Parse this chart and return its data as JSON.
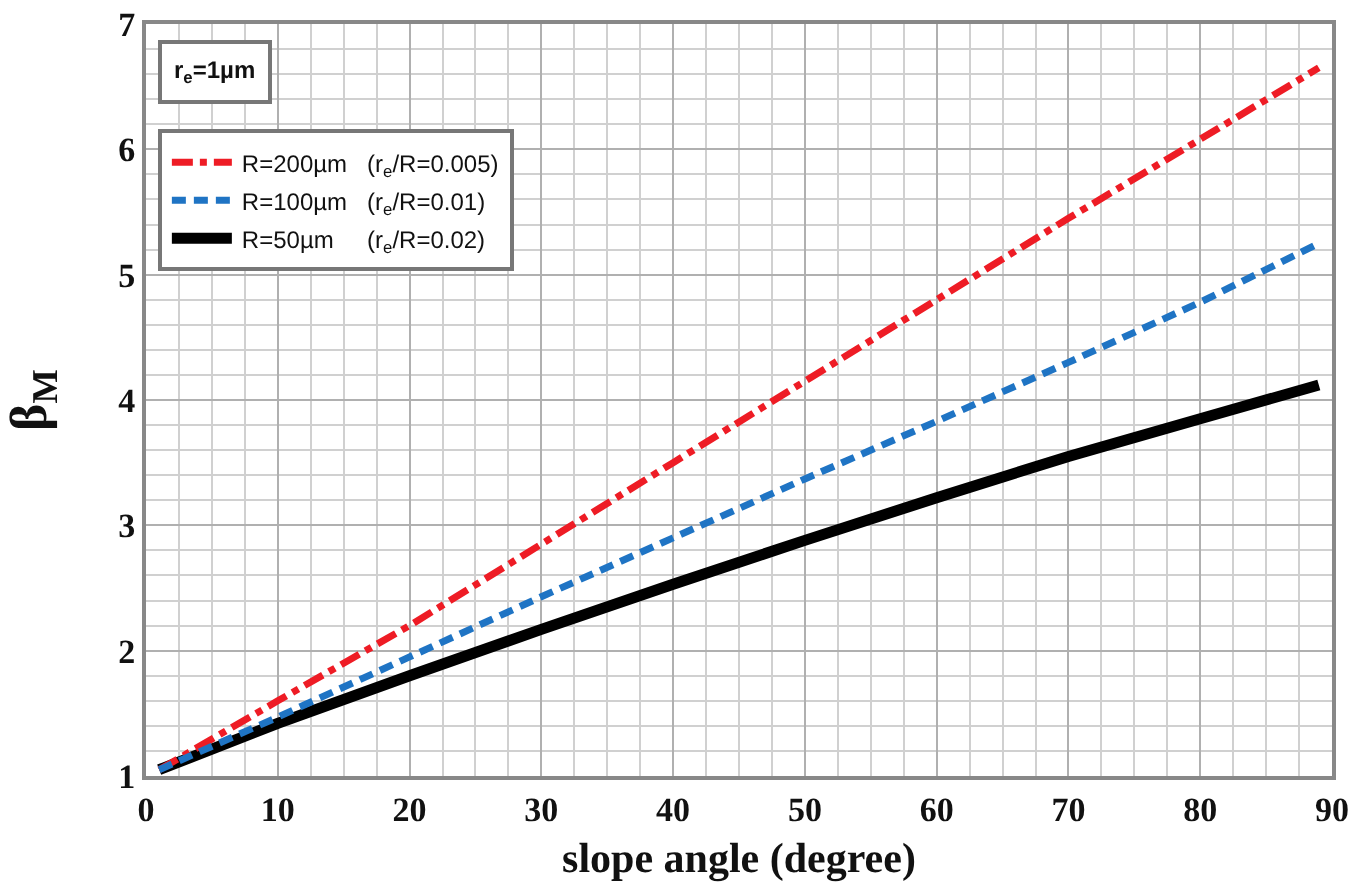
{
  "chart_data": {
    "type": "line",
    "xlabel": "slope angle (degree)",
    "ylabel": "β$_{M}$",
    "x": [
      1,
      10,
      20,
      30,
      40,
      50,
      60,
      70,
      80,
      89
    ],
    "xlim": [
      0,
      90
    ],
    "xticks": [
      0,
      10,
      20,
      30,
      40,
      50,
      60,
      70,
      80,
      90
    ],
    "ylim": [
      1,
      7
    ],
    "yticks": [
      1,
      2,
      3,
      4,
      5,
      6,
      7
    ],
    "grid": true,
    "legend": "top left",
    "annotations": [
      "r$_{e}$=1µm"
    ],
    "series": [
      {
        "name": "R=200µm   (r$_{e}$/R=0.005)",
        "color": "#ee1c25",
        "line_style": "dashdot",
        "values": [
          1.05,
          1.6,
          2.2,
          2.85,
          3.5,
          4.15,
          4.8,
          5.45,
          6.08,
          6.65
        ]
      },
      {
        "name": "R=100µm   (r$_{e}$/R=0.01)",
        "color": "#1f74c4",
        "line_style": "dashed",
        "values": [
          1.05,
          1.47,
          1.95,
          2.43,
          2.9,
          3.37,
          3.83,
          4.3,
          4.78,
          5.25
        ]
      },
      {
        "name": "R=50µm     (r$_{e}$/R=0.02)",
        "color": "#000000",
        "line_style": "solid",
        "values": [
          1.05,
          1.42,
          1.8,
          2.17,
          2.53,
          2.88,
          3.22,
          3.55,
          3.85,
          4.12
        ]
      }
    ]
  }
}
